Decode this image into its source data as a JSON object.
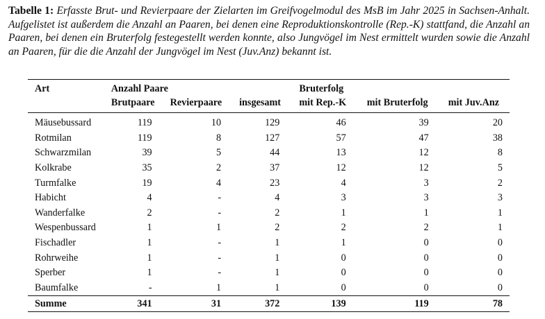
{
  "caption": {
    "label": "Tabelle 1:",
    "text": "Erfasste Brut- und Revierpaare der Zielarten im Greifvogelmodul des MsB im Jahr 2025 in Sachsen-Anhalt. Aufgelistet ist außerdem die Anzahl an Paaren, bei denen eine Reproduktionskontrolle (Rep.-K) stattfand, die Anzahl an Paaren, bei denen ein Bruterfolg festegestellt werden konnte, also Jungvögel im Nest ermittelt wurden sowie die Anzahl an Paaren, für die die Anzahl der Jungvögel im Nest (Juv.Anz) bekannt ist."
  },
  "table": {
    "header_groups": {
      "art": "Art",
      "anzahl_paare": "Anzahl Paare",
      "bruterfolg": "Bruterfolg"
    },
    "columns": [
      "Brutpaare",
      "Revierpaare",
      "insgesamt",
      "mit Rep.-K",
      "mit Bruterfolg",
      "mit Juv.Anz"
    ],
    "rows": [
      [
        "Mäusebussard",
        "119",
        "10",
        "129",
        "46",
        "39",
        "20"
      ],
      [
        "Rotmilan",
        "119",
        "8",
        "127",
        "57",
        "47",
        "38"
      ],
      [
        "Schwarzmilan",
        "39",
        "5",
        "44",
        "13",
        "12",
        "8"
      ],
      [
        "Kolkrabe",
        "35",
        "2",
        "37",
        "12",
        "12",
        "5"
      ],
      [
        "Turmfalke",
        "19",
        "4",
        "23",
        "4",
        "3",
        "2"
      ],
      [
        "Habicht",
        "4",
        "-",
        "4",
        "3",
        "3",
        "3"
      ],
      [
        "Wanderfalke",
        "2",
        "-",
        "2",
        "1",
        "1",
        "1"
      ],
      [
        "Wespenbussard",
        "1",
        "1",
        "2",
        "2",
        "2",
        "1"
      ],
      [
        "Fischadler",
        "1",
        "-",
        "1",
        "1",
        "0",
        "0"
      ],
      [
        "Rohrweihe",
        "1",
        "-",
        "1",
        "0",
        "0",
        "0"
      ],
      [
        "Sperber",
        "1",
        "-",
        "1",
        "0",
        "0",
        "0"
      ],
      [
        "Baumfalke",
        "-",
        "1",
        "1",
        "0",
        "0",
        "0"
      ]
    ],
    "total": [
      "Summe",
      "341",
      "31",
      "372",
      "139",
      "119",
      "78"
    ]
  }
}
